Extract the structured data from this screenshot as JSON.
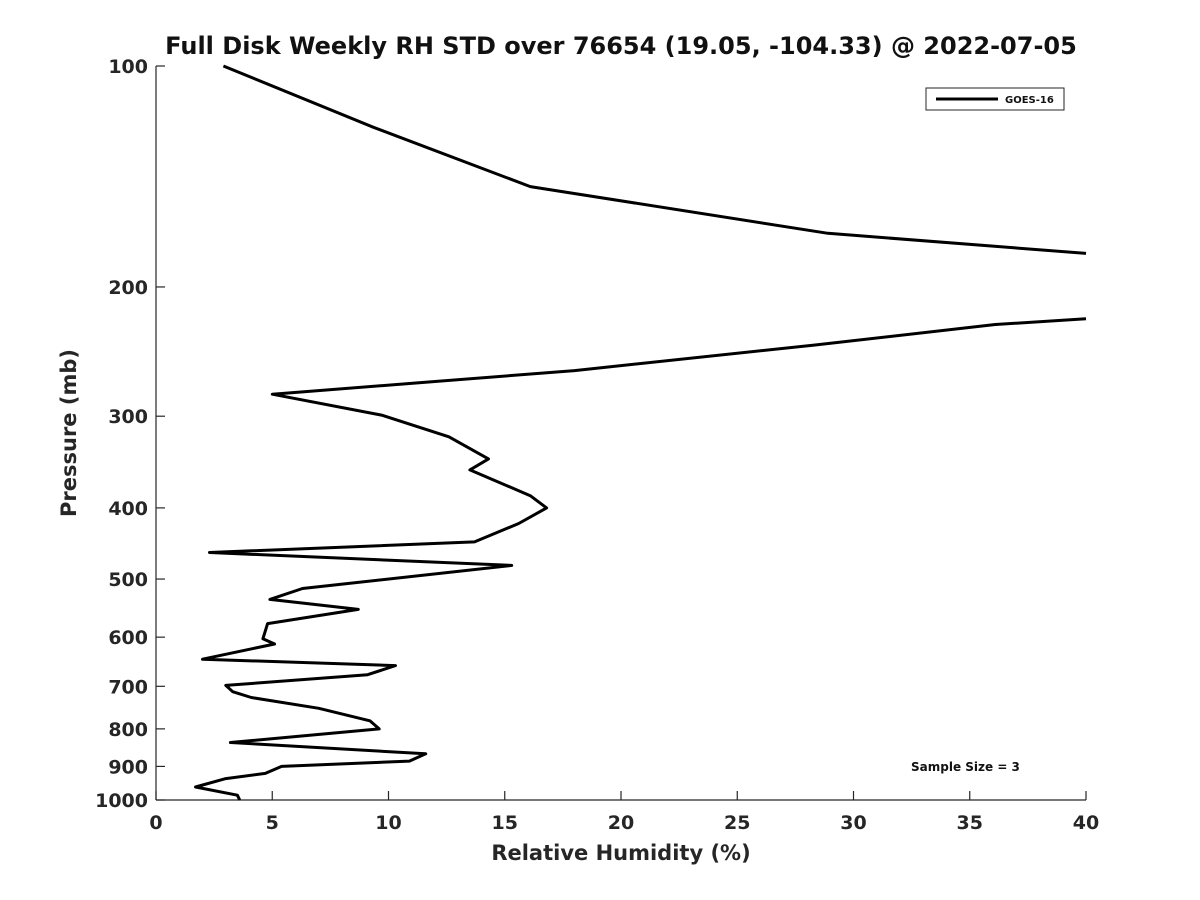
{
  "chart_data": {
    "type": "line",
    "title": "Full Disk Weekly RH STD over 76654 (19.05, -104.33) @ 2022-07-05",
    "xlabel": "Relative Humidity (%)",
    "ylabel": "Pressure (mb)",
    "xlim": [
      0,
      40
    ],
    "ylim": [
      100,
      1000
    ],
    "yscale": "log",
    "reverse_y": true,
    "xticks": [
      0,
      5,
      10,
      15,
      20,
      25,
      30,
      35,
      40
    ],
    "yticks": [
      100,
      200,
      300,
      400,
      500,
      600,
      700,
      800,
      900,
      1000
    ],
    "grid": false,
    "legend_position": "top-right",
    "annotation": "Sample Size = 3",
    "series": [
      {
        "name": "GOES-16",
        "color": "#000000",
        "points": [
          {
            "x": 3.6,
            "p": 1000
          },
          {
            "x": 3.5,
            "p": 985
          },
          {
            "x": 1.7,
            "p": 960
          },
          {
            "x": 3.0,
            "p": 935
          },
          {
            "x": 4.7,
            "p": 920
          },
          {
            "x": 5.4,
            "p": 900
          },
          {
            "x": 10.9,
            "p": 885
          },
          {
            "x": 11.6,
            "p": 865
          },
          {
            "x": 3.2,
            "p": 835
          },
          {
            "x": 9.6,
            "p": 800
          },
          {
            "x": 9.2,
            "p": 780
          },
          {
            "x": 7.0,
            "p": 750
          },
          {
            "x": 4.1,
            "p": 725
          },
          {
            "x": 3.3,
            "p": 712
          },
          {
            "x": 3.0,
            "p": 698
          },
          {
            "x": 9.1,
            "p": 675
          },
          {
            "x": 10.3,
            "p": 656
          },
          {
            "x": 2.0,
            "p": 643
          },
          {
            "x": 5.1,
            "p": 613
          },
          {
            "x": 4.6,
            "p": 603
          },
          {
            "x": 4.8,
            "p": 575
          },
          {
            "x": 8.7,
            "p": 550
          },
          {
            "x": 4.9,
            "p": 533
          },
          {
            "x": 6.3,
            "p": 515
          },
          {
            "x": 15.3,
            "p": 479
          },
          {
            "x": 2.3,
            "p": 460
          },
          {
            "x": 13.7,
            "p": 445
          },
          {
            "x": 15.6,
            "p": 420
          },
          {
            "x": 16.8,
            "p": 400
          },
          {
            "x": 16.1,
            "p": 385
          },
          {
            "x": 13.5,
            "p": 355
          },
          {
            "x": 14.3,
            "p": 343
          },
          {
            "x": 12.6,
            "p": 320
          },
          {
            "x": 9.7,
            "p": 299
          },
          {
            "x": 5.0,
            "p": 280
          },
          {
            "x": 18.0,
            "p": 260
          },
          {
            "x": 28.3,
            "p": 240
          },
          {
            "x": 36.1,
            "p": 225
          },
          {
            "x": 40.0,
            "p": 221
          }
        ]
      },
      {
        "name": "GOES-16",
        "color": "#000000",
        "points": [
          {
            "x": 2.9,
            "p": 100
          },
          {
            "x": 9.3,
            "p": 121
          },
          {
            "x": 16.1,
            "p": 146
          },
          {
            "x": 28.9,
            "p": 169
          },
          {
            "x": 40.0,
            "p": 180
          }
        ]
      }
    ]
  }
}
